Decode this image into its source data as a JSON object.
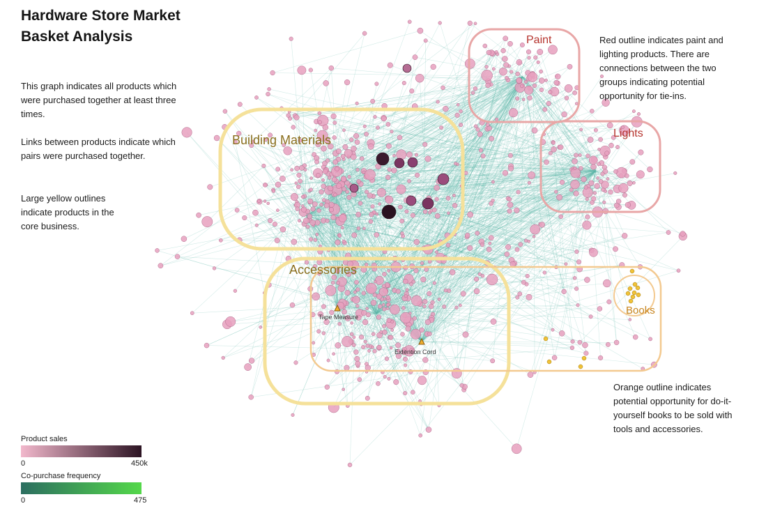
{
  "title": "Hardware Store Market Basket Analysis",
  "description": [
    "This graph indicates all products which were purchased together at least three times.",
    "Links between products indicate which pairs were purchased together.",
    "Large yellow outlines indicate products in the core business."
  ],
  "annotations": {
    "red_note": "Red outline indicates paint and lighting products. There are connections between the two groups indicating potential opportunity for tie-ins.",
    "orange_note": "Orange outline indicates potential opportunity for do-it-yourself books to be sold with tools and accessories."
  },
  "clusters": [
    {
      "label": "Paint",
      "outline": "red",
      "color": "#e8a6a6",
      "text_color": "#b5322c"
    },
    {
      "label": "Lights",
      "outline": "red",
      "color": "#e8a6a6",
      "text_color": "#b5322c"
    },
    {
      "label": "Building Materials",
      "outline": "yellow",
      "color": "#f5e19a",
      "text_color": "#8b6f1e"
    },
    {
      "label": "Accessories",
      "outline": "yellow",
      "color": "#f5e19a",
      "text_color": "#8b6f1e"
    },
    {
      "label": "Books",
      "outline": "orange",
      "color": "#f3c98f",
      "text_color": "#c7841c"
    }
  ],
  "highlighted_products": [
    {
      "label": "Tape Measure"
    },
    {
      "label": "Extention Cord"
    }
  ],
  "legend": {
    "product_sales": {
      "label": "Product sales",
      "min": "0",
      "max": "450k",
      "color_start": "#f2b8cc",
      "color_end": "#2c1423"
    },
    "copurchase": {
      "label": "Co-purchase frequency",
      "min": "0",
      "max": "475",
      "color_start": "#2c6e60",
      "color_end": "#54d84a"
    }
  },
  "colors": {
    "node": "#e8a0be",
    "node_stroke": "#b06d8d",
    "edge": "#5fb8a8",
    "book_node": "#f0c238"
  }
}
